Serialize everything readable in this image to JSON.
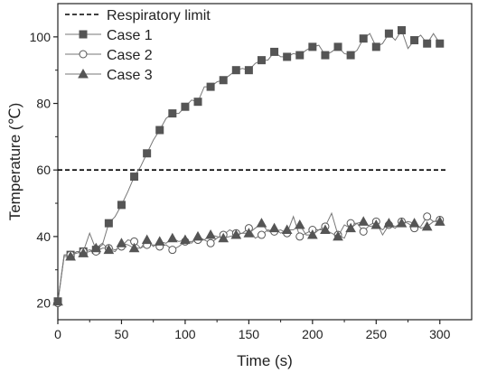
{
  "chart_data": {
    "type": "line",
    "xlabel": "Time (s)",
    "ylabel": "Temperature (℃)",
    "xlim": [
      0,
      325
    ],
    "ylim": [
      15,
      110
    ],
    "x_ticks": [
      0,
      50,
      100,
      150,
      200,
      250,
      300
    ],
    "y_ticks": [
      20,
      40,
      60,
      80,
      100
    ],
    "grid": false,
    "legend_position": "top-left",
    "reference_lines": [
      {
        "name": "Respiratory limit",
        "y": 60,
        "x_range": [
          0,
          325
        ],
        "color": "#000000",
        "style": "dashed"
      }
    ],
    "series": [
      {
        "name": "Case 1",
        "marker": "square",
        "color": "#555555",
        "x": [
          0,
          5,
          10,
          15,
          20,
          25,
          30,
          35,
          40,
          45,
          50,
          55,
          60,
          65,
          70,
          75,
          80,
          85,
          90,
          95,
          100,
          105,
          110,
          115,
          120,
          125,
          130,
          135,
          140,
          145,
          150,
          155,
          160,
          165,
          170,
          175,
          180,
          185,
          190,
          195,
          200,
          205,
          210,
          215,
          220,
          225,
          230,
          235,
          240,
          245,
          250,
          255,
          260,
          265,
          270,
          275,
          280,
          285,
          290,
          295,
          300
        ],
        "y": [
          20.5,
          34.5,
          34.5,
          35,
          35.5,
          41,
          36,
          37.5,
          44,
          46,
          49.5,
          53.5,
          58,
          61,
          65,
          69,
          72,
          75.5,
          77,
          77,
          79,
          81,
          80.5,
          85,
          85,
          86.5,
          87,
          88.5,
          90,
          90.5,
          90,
          92,
          93,
          93,
          95.5,
          94,
          94,
          95,
          94.5,
          96,
          97,
          97.5,
          94.5,
          95.5,
          97,
          95,
          94.5,
          96,
          99.5,
          101,
          97,
          98,
          101,
          99,
          102,
          96.5,
          99,
          100.5,
          98,
          101,
          98
        ],
        "visible_points_only": true
      },
      {
        "name": "Case 2",
        "marker": "circle",
        "color": "#555555",
        "x": [
          0,
          5,
          10,
          15,
          20,
          25,
          30,
          35,
          40,
          45,
          50,
          55,
          60,
          65,
          70,
          75,
          80,
          85,
          90,
          95,
          100,
          105,
          110,
          115,
          120,
          125,
          130,
          135,
          140,
          145,
          150,
          155,
          160,
          165,
          170,
          175,
          180,
          185,
          190,
          195,
          200,
          205,
          210,
          215,
          220,
          225,
          230,
          235,
          240,
          245,
          250,
          255,
          260,
          265,
          270,
          275,
          280,
          285,
          290,
          295,
          300
        ],
        "y": [
          20,
          34.5,
          34.5,
          35.5,
          35.5,
          36,
          35.5,
          36.5,
          36.5,
          36,
          37,
          39,
          38.5,
          36.5,
          37.5,
          37.5,
          37,
          37.5,
          36,
          37,
          38.5,
          38.5,
          39,
          39,
          38,
          39.5,
          40.5,
          42,
          41,
          41,
          42.5,
          39.5,
          40.5,
          42,
          41.5,
          42,
          41,
          46,
          40,
          41,
          42,
          42,
          43,
          47,
          40.5,
          39.5,
          44,
          44,
          41.5,
          43.5,
          44.5,
          40.5,
          43.5,
          42.5,
          44.5,
          44,
          42.5,
          43,
          46,
          44.5,
          45
        ],
        "visible_points_only": true
      },
      {
        "name": "Case 3",
        "marker": "triangle",
        "color": "#555555",
        "x": [
          0,
          5,
          10,
          15,
          20,
          25,
          30,
          35,
          40,
          45,
          50,
          55,
          60,
          65,
          70,
          75,
          80,
          85,
          90,
          95,
          100,
          105,
          110,
          115,
          120,
          125,
          130,
          135,
          140,
          145,
          150,
          155,
          160,
          165,
          170,
          175,
          180,
          185,
          190,
          195,
          200,
          205,
          210,
          215,
          220,
          225,
          230,
          235,
          240,
          245,
          250,
          255,
          260,
          265,
          270,
          275,
          280,
          285,
          290,
          295,
          300
        ],
        "y": [
          20.5,
          34,
          34,
          35.5,
          35,
          35.5,
          36.5,
          38,
          36,
          35.5,
          38,
          37.5,
          36.5,
          36.5,
          39,
          37,
          38.5,
          38,
          39.5,
          38.5,
          39,
          38,
          40,
          39,
          40.5,
          40,
          39.5,
          40,
          40.5,
          41,
          41,
          42.5,
          44,
          41.5,
          42.5,
          41,
          42,
          42,
          43.5,
          40.5,
          40.5,
          42,
          42,
          41,
          40,
          43.5,
          42.5,
          44,
          44.5,
          43,
          43.5,
          42,
          44,
          43,
          44,
          44.5,
          44,
          42.5,
          43,
          44.5,
          44.5
        ],
        "visible_points_only": true
      }
    ]
  }
}
